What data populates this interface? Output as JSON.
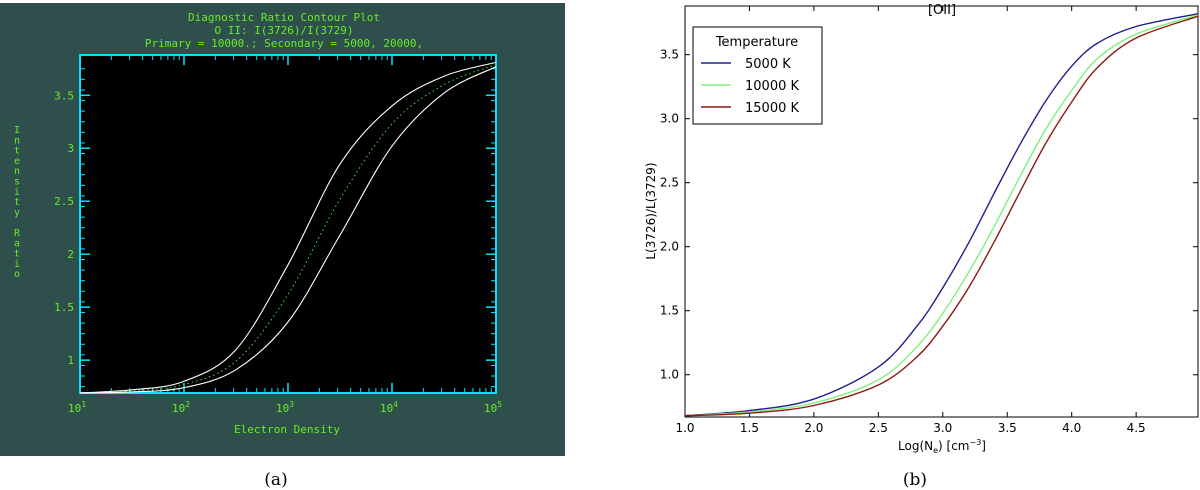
{
  "chart_data": [
    {
      "type": "line",
      "panel_label": "(a)",
      "title_lines": [
        "Diagnostic Ratio Contour Plot",
        "O II: I(3726)/I(3729)",
        "Primary = 10000.; Secondary = 5000, 20000,"
      ],
      "xlabel": "Electron Density",
      "ylabel": "Intensity Ratio",
      "x_scale": "log",
      "xlim": [
        10,
        100000
      ],
      "ylim": [
        0.69,
        3.88
      ],
      "x_tick_labels": [
        {
          "base": "10",
          "exp": "1"
        },
        {
          "base": "10",
          "exp": "2"
        },
        {
          "base": "10",
          "exp": "3"
        },
        {
          "base": "10",
          "exp": "4"
        },
        {
          "base": "10",
          "exp": "5"
        }
      ],
      "x_ticks": [
        10,
        100,
        1000,
        10000,
        100000
      ],
      "y_ticks": [
        1,
        1.5,
        2,
        2.5,
        3,
        3.5
      ],
      "y_tick_labels": [
        "1",
        "1.5",
        "2",
        "2.5",
        "3",
        "3.5"
      ],
      "series": [
        {
          "style": "solid",
          "color": "#ffffff",
          "x": [
            10,
            31.6,
            100,
            316,
            1000,
            3160,
            10000,
            31600,
            100000
          ],
          "y": [
            0.69,
            0.72,
            0.8,
            1.1,
            1.9,
            2.85,
            3.4,
            3.68,
            3.81
          ]
        },
        {
          "style": "dotted",
          "color": "#3fcf3f",
          "x": [
            10,
            31.6,
            100,
            316,
            1000,
            3160,
            10000,
            31600,
            100000
          ],
          "y": [
            0.69,
            0.71,
            0.77,
            0.99,
            1.62,
            2.52,
            3.23,
            3.6,
            3.79
          ]
        },
        {
          "style": "solid",
          "color": "#ffffff",
          "x": [
            10,
            31.6,
            100,
            316,
            1000,
            3160,
            10000,
            31600,
            100000
          ],
          "y": [
            0.69,
            0.7,
            0.74,
            0.91,
            1.36,
            2.18,
            3.02,
            3.52,
            3.77
          ]
        }
      ],
      "colors": {
        "background": "#2e4f4c",
        "plot": "#000000",
        "axes": "#00e5ff",
        "text": "#66ee22"
      }
    },
    {
      "type": "line",
      "panel_label": "(b)",
      "title": "[OII]",
      "xlabel": "Log(N",
      "xlabel_sub": "e",
      "xlabel_rest": ") [cm",
      "xlabel_sup": "−3",
      "xlabel_end": "]",
      "ylabel": "L(3726)/L(3729)",
      "xlim": [
        1.0,
        4.98
      ],
      "ylim": [
        0.67,
        3.88
      ],
      "x_ticks": [
        1.0,
        1.5,
        2.0,
        2.5,
        3.0,
        3.5,
        4.0,
        4.5
      ],
      "x_tick_labels": [
        "1.0",
        "1.5",
        "2.0",
        "2.5",
        "3.0",
        "3.5",
        "4.0",
        "4.5"
      ],
      "y_ticks": [
        1.0,
        1.5,
        2.0,
        2.5,
        3.0,
        3.5
      ],
      "y_tick_labels": [
        "1.0",
        "1.5",
        "2.0",
        "2.5",
        "3.0",
        "3.5"
      ],
      "legend_title": "Temperature",
      "legend_position": "top-left",
      "series": [
        {
          "name": "5000 K",
          "color": "#1f1f8f",
          "x": [
            1.0,
            1.5,
            2.0,
            2.5,
            2.8,
            3.0,
            3.2,
            3.4,
            3.6,
            3.8,
            4.0,
            4.2,
            4.5,
            4.98
          ],
          "y": [
            0.68,
            0.72,
            0.81,
            1.06,
            1.38,
            1.68,
            2.03,
            2.42,
            2.8,
            3.14,
            3.41,
            3.59,
            3.72,
            3.82
          ]
        },
        {
          "name": "10000 K",
          "color": "#7ef07e",
          "x": [
            1.0,
            1.5,
            2.0,
            2.5,
            2.8,
            3.0,
            3.2,
            3.4,
            3.6,
            3.8,
            4.0,
            4.2,
            4.5,
            4.98
          ],
          "y": [
            0.68,
            0.71,
            0.78,
            0.96,
            1.22,
            1.48,
            1.8,
            2.16,
            2.55,
            2.92,
            3.22,
            3.47,
            3.66,
            3.81
          ]
        },
        {
          "name": "15000 K",
          "color": "#8b1a10",
          "x": [
            1.0,
            1.5,
            2.0,
            2.5,
            2.8,
            3.0,
            3.2,
            3.4,
            3.6,
            3.8,
            4.0,
            4.2,
            4.5,
            4.98
          ],
          "y": [
            0.68,
            0.7,
            0.76,
            0.92,
            1.14,
            1.38,
            1.68,
            2.04,
            2.43,
            2.81,
            3.13,
            3.4,
            3.63,
            3.8
          ]
        }
      ],
      "grid": false
    }
  ]
}
